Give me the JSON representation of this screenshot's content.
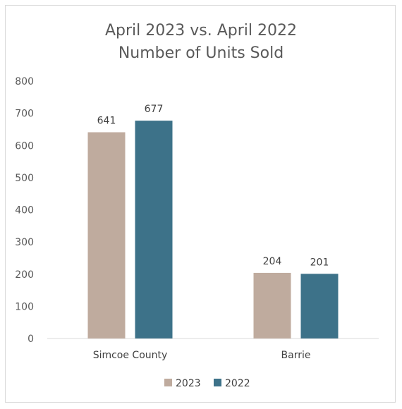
{
  "chart_data": {
    "type": "bar",
    "title": "April 2023 vs. April 2022",
    "subtitle": "Number of Units Sold",
    "categories": [
      "Simcoe County",
      "Barrie"
    ],
    "series": [
      {
        "name": "2023",
        "values": [
          641,
          204
        ],
        "color": "#bfab9e"
      },
      {
        "name": "2022",
        "values": [
          677,
          201
        ],
        "color": "#3d7289"
      }
    ],
    "ylim": [
      0,
      800
    ],
    "yticks": [
      "0",
      "100",
      "200",
      "300",
      "400",
      "500",
      "600",
      "700",
      "800"
    ],
    "grid": false,
    "legend": "bottom-center"
  }
}
